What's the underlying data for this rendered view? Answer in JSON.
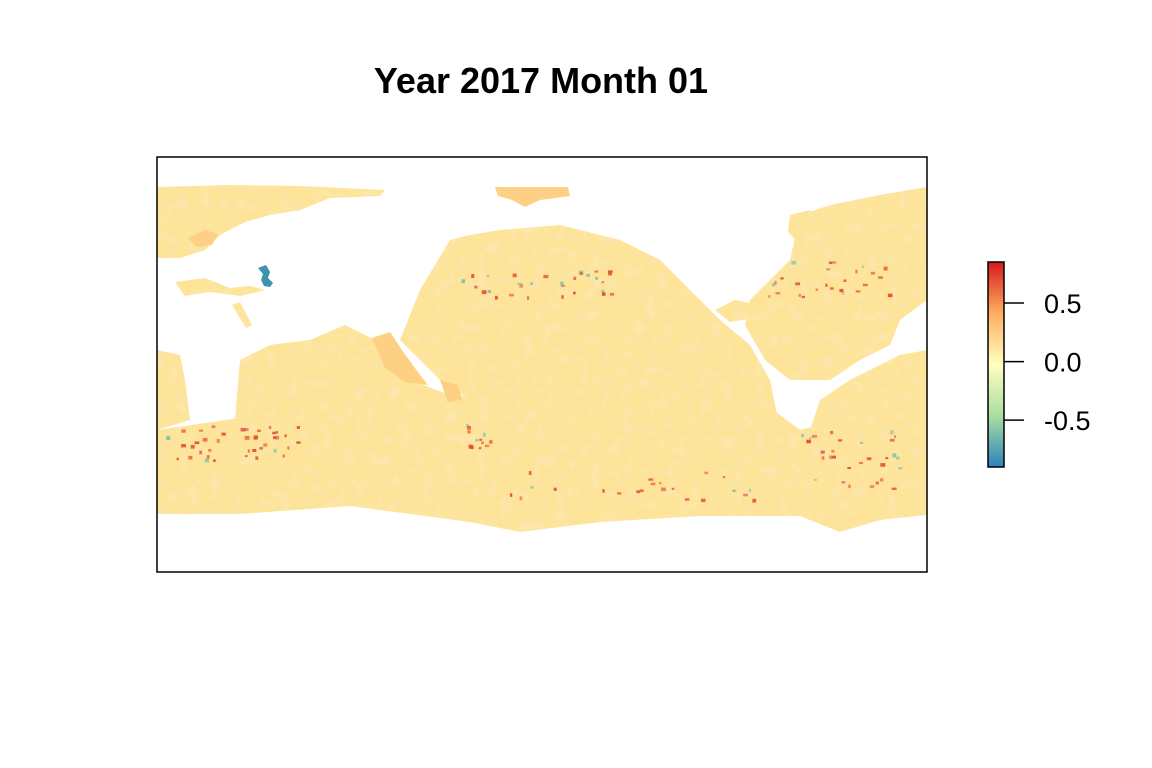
{
  "title": "Year 2017 Month 01",
  "legend": {
    "ticks": [
      {
        "value": 0.5,
        "label": "0.5"
      },
      {
        "value": 0.0,
        "label": "0.0"
      },
      {
        "value": -0.5,
        "label": "-0.5"
      }
    ],
    "range": [
      -0.9,
      0.85
    ],
    "colors": [
      "#2b83ba",
      "#abdda4",
      "#ffffbf",
      "#fdae61",
      "#d7191c"
    ]
  },
  "colors": {
    "ocean_base": "#fde499",
    "ocean_warm": "#fdd083",
    "anomaly_high": "#e34a33",
    "anomaly_low": "#80bfab",
    "caspian": "#3f93ad",
    "land": "#ffffff",
    "frame": "#000000"
  }
}
